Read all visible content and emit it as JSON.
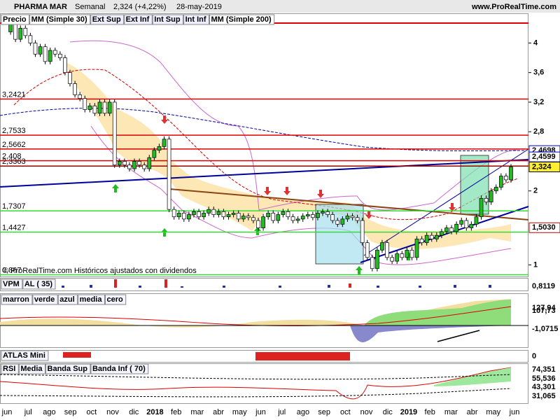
{
  "header": {
    "symbol": "PHARMA MAR",
    "period": "Semanal",
    "last": "2,324 (+4,22%)",
    "date": "28-may-2019",
    "site": "www.ProRealTime.com"
  },
  "chart_data": {
    "type": "candlestick",
    "legend": [
      {
        "name": "Precio",
        "color": "#000000"
      },
      {
        "name": "MM (Simple 30)",
        "color": "#cc0000"
      },
      {
        "name": "Ext Sup",
        "color": "#cc66cc"
      },
      {
        "name": "Ext Inf",
        "color": "#cc66cc"
      },
      {
        "name": "Int Sup",
        "color": "#b8b8e0"
      },
      {
        "name": "Int Inf",
        "color": "#b8b8e0"
      },
      {
        "name": "MM (Simple 200)",
        "color": "#000099"
      }
    ],
    "ylim": [
      0.843,
      4.392
    ],
    "yticks": [
      {
        "value": 4,
        "label": "4"
      },
      {
        "value": 3.6,
        "label": "3,6"
      },
      {
        "value": 3.2,
        "label": "3,2"
      },
      {
        "value": 2.8,
        "label": "2,8"
      },
      {
        "value": 2,
        "label": "2"
      },
      {
        "value": 1,
        "label": "1"
      }
    ],
    "categories": [
      "jun",
      "jul",
      "ago",
      "sep",
      "oct",
      "nov",
      "dic",
      "2018",
      "feb",
      "mar",
      "abr",
      "may",
      "jun",
      "jul",
      "ago",
      "sep",
      "oct",
      "nov",
      "dic",
      "2019",
      "feb",
      "mar",
      "abr",
      "may",
      "jun"
    ],
    "close": [
      4.15,
      4.25,
      4.05,
      4.2,
      4.1,
      4.0,
      3.85,
      3.95,
      3.75,
      3.9,
      3.85,
      3.8,
      3.6,
      3.45,
      3.3,
      3.25,
      3.1,
      3.15,
      3.05,
      3.2,
      3.05,
      3.2,
      2.35,
      2.4,
      2.35,
      2.3,
      2.4,
      2.35,
      2.3,
      2.45,
      2.55,
      2.6,
      2.7,
      1.75,
      1.65,
      1.7,
      1.62,
      1.68,
      1.72,
      1.65,
      1.7,
      1.75,
      1.68,
      1.72,
      1.65,
      1.68,
      1.7,
      1.62,
      1.66,
      1.64,
      1.6,
      1.5,
      1.65,
      1.7,
      1.6,
      1.68,
      1.72,
      1.65,
      1.6,
      1.62,
      1.66,
      1.68,
      1.64,
      1.7,
      1.72,
      1.68,
      1.6,
      1.55,
      1.62,
      1.66,
      1.64,
      1.6,
      1.3,
      1.1,
      0.95,
      1.2,
      1.3,
      1.1,
      1.05,
      1.15,
      1.1,
      1.2,
      1.1,
      1.35,
      1.3,
      1.4,
      1.35,
      1.4,
      1.45,
      1.5,
      1.45,
      1.55,
      1.6,
      1.5,
      1.55,
      1.65,
      1.9,
      1.85,
      2.0,
      2.05,
      2.2,
      2.15,
      2.324
    ],
    "up_color": "#22bb22",
    "down_color": "#ffffff",
    "levels": [
      {
        "value": 3.2421,
        "label": "3,2421",
        "color": "#dd0000"
      },
      {
        "value": 2.7533,
        "label": "2,7533",
        "color": "#dd0000"
      },
      {
        "value": 2.5662,
        "label": "2,5662",
        "color": "#dd0000"
      },
      {
        "value": 2.408,
        "label": "2,408",
        "color": "#dd0000"
      },
      {
        "value": 2.3363,
        "label": "2,3363",
        "color": "#990000"
      },
      {
        "value": 1.7307,
        "label": "1,7307",
        "color": "#33dd33"
      },
      {
        "value": 1.4427,
        "label": "1,4427",
        "color": "#33dd33"
      },
      {
        "value": 0.867,
        "label": "0,867",
        "color": "#33dd33"
      }
    ],
    "right_labels": [
      {
        "value": 2.4698,
        "label": "2,4698",
        "color": "#0000cc"
      },
      {
        "value": 2.4599,
        "label": "2,4599",
        "color": "#0000cc"
      },
      {
        "value": 2.324,
        "label": "2,324",
        "color": "#000000"
      },
      {
        "value": 1.503,
        "label": "1,5030",
        "color": "#cc0000"
      }
    ],
    "note": "© ProRealTime.com Históricos ajustados con dividendos"
  },
  "indicators": [
    {
      "labels": [
        "VPM",
        "AL ( 35)"
      ],
      "right": [
        "0,8119"
      ]
    },
    {
      "labels": [
        "marron",
        "verde",
        "azul",
        "media",
        "cero"
      ],
      "right": [
        "127,94",
        "107,73",
        "-1,0715"
      ]
    },
    {
      "labels": [
        "ATLAS Mini"
      ],
      "right": [
        "0"
      ]
    },
    {
      "labels": [
        "RSI",
        "Media",
        "Banda Sup",
        "Banda Inf ( 70)"
      ],
      "right": [
        "74,351",
        "55,536",
        "43,301",
        "31,065"
      ]
    }
  ]
}
